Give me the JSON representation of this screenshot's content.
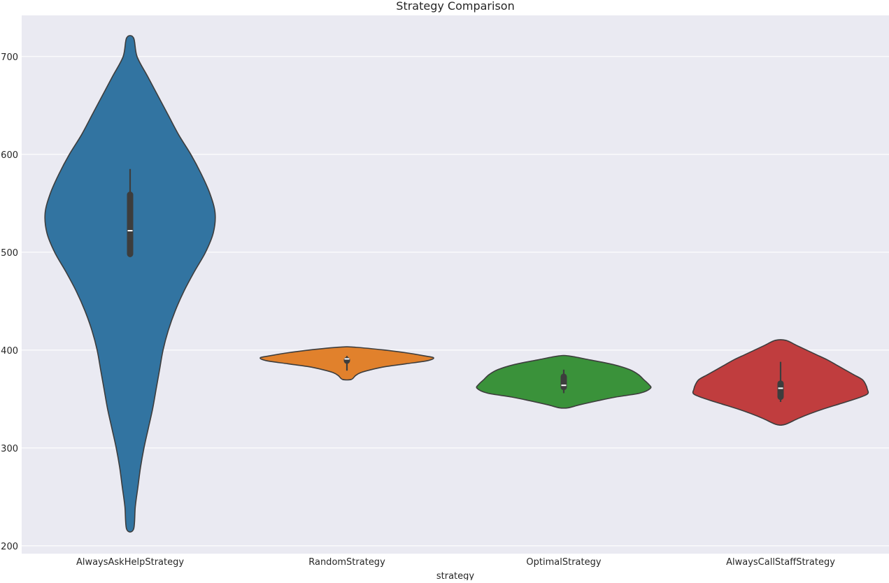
{
  "chart_data": {
    "type": "violin",
    "title": "Strategy Comparison",
    "xlabel": "strategy",
    "ylabel": "",
    "ylim": [
      192,
      742
    ],
    "yticks": [
      200,
      300,
      400,
      500,
      600,
      700
    ],
    "grid": true,
    "legend": "none",
    "background_color": "#eaeaf2",
    "grid_color": "#ffffff",
    "outline_color": "#3d3d3d",
    "categories": [
      "AlwaysAskHelpStrategy",
      "RandomStrategy",
      "OptimalStrategy",
      "AlwaysCallStaffStrategy"
    ],
    "series": [
      {
        "category": "AlwaysAskHelpStrategy",
        "color": "#3274a1",
        "min": 217,
        "max": 719,
        "q1": 495,
        "median": 522,
        "q3": 562,
        "whisker_low": 495,
        "whisker_high": 585,
        "density_profile": [
          [
            719,
            0.04
          ],
          [
            700,
            0.08
          ],
          [
            680,
            0.2
          ],
          [
            660,
            0.32
          ],
          [
            640,
            0.44
          ],
          [
            620,
            0.56
          ],
          [
            600,
            0.7
          ],
          [
            580,
            0.82
          ],
          [
            560,
            0.92
          ],
          [
            540,
            0.98
          ],
          [
            520,
            0.96
          ],
          [
            500,
            0.87
          ],
          [
            480,
            0.74
          ],
          [
            460,
            0.62
          ],
          [
            440,
            0.52
          ],
          [
            420,
            0.44
          ],
          [
            400,
            0.38
          ],
          [
            380,
            0.34
          ],
          [
            360,
            0.3
          ],
          [
            340,
            0.26
          ],
          [
            320,
            0.21
          ],
          [
            300,
            0.16
          ],
          [
            280,
            0.12
          ],
          [
            260,
            0.09
          ],
          [
            240,
            0.06
          ],
          [
            217,
            0.04
          ]
        ]
      },
      {
        "category": "RandomStrategy",
        "color": "#e1812c",
        "min": 370,
        "max": 403,
        "q1": 386,
        "median": 391,
        "q3": 393,
        "whisker_low": 379,
        "whisker_high": 394,
        "density_profile": [
          [
            403,
            0.08
          ],
          [
            400,
            0.44
          ],
          [
            397,
            0.7
          ],
          [
            394,
            0.9
          ],
          [
            392,
            1.0
          ],
          [
            389,
            0.92
          ],
          [
            386,
            0.68
          ],
          [
            383,
            0.44
          ],
          [
            380,
            0.28
          ],
          [
            377,
            0.16
          ],
          [
            374,
            0.1
          ],
          [
            370,
            0.05
          ]
        ]
      },
      {
        "category": "OptimalStrategy",
        "color": "#3a923a",
        "min": 341,
        "max": 394,
        "q1": 359,
        "median": 364,
        "q3": 376,
        "whisker_low": 356,
        "whisker_high": 380,
        "density_profile": [
          [
            394,
            0.06
          ],
          [
            390,
            0.3
          ],
          [
            385,
            0.58
          ],
          [
            380,
            0.76
          ],
          [
            375,
            0.86
          ],
          [
            370,
            0.92
          ],
          [
            365,
            0.98
          ],
          [
            361,
            1.0
          ],
          [
            356,
            0.88
          ],
          [
            352,
            0.6
          ],
          [
            348,
            0.38
          ],
          [
            344,
            0.18
          ],
          [
            341,
            0.05
          ]
        ]
      },
      {
        "category": "AlwaysCallStaffStrategy",
        "color": "#c03d3e",
        "min": 324,
        "max": 410,
        "q1": 349,
        "median": 361,
        "q3": 369,
        "whisker_low": 347,
        "whisker_high": 388,
        "density_profile": [
          [
            410,
            0.06
          ],
          [
            405,
            0.18
          ],
          [
            400,
            0.3
          ],
          [
            395,
            0.42
          ],
          [
            390,
            0.54
          ],
          [
            385,
            0.64
          ],
          [
            380,
            0.74
          ],
          [
            375,
            0.84
          ],
          [
            370,
            0.94
          ],
          [
            365,
            0.98
          ],
          [
            360,
            1.0
          ],
          [
            355,
            1.0
          ],
          [
            350,
            0.86
          ],
          [
            345,
            0.68
          ],
          [
            340,
            0.5
          ],
          [
            335,
            0.34
          ],
          [
            330,
            0.2
          ],
          [
            324,
            0.05
          ]
        ]
      }
    ]
  }
}
